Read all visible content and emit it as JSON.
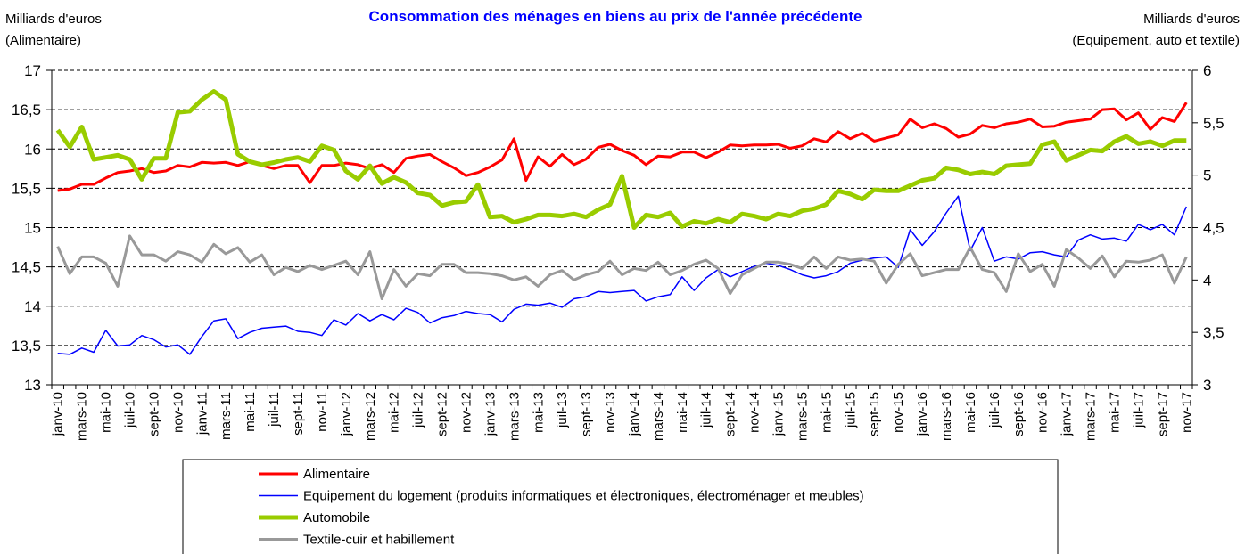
{
  "chart_data": {
    "type": "line",
    "title": "Consommation des ménages en biens au prix de l'année précédente",
    "y_label": [
      "Milliards d'euros",
      "(Alimentaire)"
    ],
    "y2_label": [
      "Milliards d'euros",
      "(Equipement, auto et textile)"
    ],
    "ylim": [
      13,
      17
    ],
    "yticks": [
      13,
      {
        "value": 13.5,
        "label": "13,5"
      },
      14,
      {
        "value": 14.5,
        "label": "14,5"
      },
      15,
      {
        "value": 15.5,
        "label": "15,5"
      },
      16,
      {
        "value": 16.5,
        "label": "16,5"
      },
      17
    ],
    "y2lim": [
      3,
      6
    ],
    "y2ticks": [
      3,
      {
        "value": 3.5,
        "label": "3,5"
      },
      4,
      {
        "value": 4.5,
        "label": "4,5"
      },
      5,
      {
        "value": 5.5,
        "label": "5,5"
      },
      6
    ],
    "grid": true,
    "categories": [
      "janv-10",
      null,
      "mars-10",
      null,
      "mai-10",
      null,
      "juil-10",
      null,
      "sept-10",
      null,
      "nov-10",
      null,
      "janv-11",
      null,
      "mars-11",
      null,
      "mai-11",
      null,
      "juil-11",
      null,
      "sept-11",
      null,
      "nov-11",
      null,
      "janv-12",
      null,
      "mars-12",
      null,
      "mai-12",
      null,
      "juil-12",
      null,
      "sept-12",
      null,
      "nov-12",
      null,
      "janv-13",
      null,
      "mars-13",
      null,
      "mai-13",
      null,
      "juil-13",
      null,
      "sept-13",
      null,
      "nov-13",
      null,
      "janv-14",
      null,
      "mars-14",
      null,
      "mai-14",
      null,
      "juil-14",
      null,
      "sept-14",
      null,
      "nov-14",
      null,
      "janv-15",
      null,
      "mars-15",
      null,
      "mai-15",
      null,
      "juil-15",
      null,
      "sept-15",
      null,
      "nov-15",
      null,
      "janv-16",
      null,
      "mars-16",
      null,
      "mai-16",
      null,
      "juil-16",
      null,
      "sept-16",
      null,
      "nov-16",
      null,
      "janv-17",
      null,
      "mars-17",
      null,
      "mai-17",
      null,
      "juil-17",
      null,
      "sept-17",
      null,
      "nov-17"
    ],
    "series": [
      {
        "name": "Alimentaire",
        "color": "#ff0000",
        "axis": "y",
        "values": [
          15.47,
          15.49,
          15.55,
          15.55,
          15.63,
          15.7,
          15.72,
          15.75,
          15.7,
          15.72,
          15.79,
          15.77,
          15.83,
          15.82,
          15.83,
          15.79,
          15.84,
          15.79,
          15.75,
          15.79,
          15.79,
          15.57,
          15.79,
          15.79,
          15.82,
          15.8,
          15.75,
          15.8,
          15.7,
          15.88,
          15.91,
          15.93,
          15.84,
          15.76,
          15.66,
          15.7,
          15.77,
          15.86,
          16.13,
          15.6,
          15.9,
          15.78,
          15.93,
          15.8,
          15.87,
          16.02,
          16.06,
          15.98,
          15.92,
          15.8,
          15.91,
          15.9,
          15.96,
          15.96,
          15.89,
          15.96,
          16.05,
          16.04,
          16.05,
          16.05,
          16.06,
          16.01,
          16.04,
          16.13,
          16.09,
          16.22,
          16.13,
          16.2,
          16.1,
          16.14,
          16.18,
          16.38,
          16.27,
          16.32,
          16.26,
          16.15,
          16.19,
          16.3,
          16.27,
          16.32,
          16.34,
          16.38,
          16.28,
          16.29,
          16.34,
          16.36,
          16.38,
          16.5,
          16.51,
          16.37,
          16.46,
          16.25,
          16.4,
          16.35,
          16.59
        ]
      },
      {
        "name": "Equipement du logement (produits informatiques et électroniques, électroménager et meubles)",
        "color": "#0000ff",
        "axis": "y2",
        "values": [
          3.3,
          3.29,
          3.35,
          3.31,
          3.52,
          3.37,
          3.38,
          3.47,
          3.43,
          3.36,
          3.38,
          3.29,
          3.46,
          3.61,
          3.63,
          3.44,
          3.5,
          3.54,
          3.55,
          3.56,
          3.51,
          3.5,
          3.47,
          3.62,
          3.57,
          3.68,
          3.61,
          3.67,
          3.62,
          3.73,
          3.69,
          3.59,
          3.64,
          3.66,
          3.7,
          3.68,
          3.67,
          3.6,
          3.72,
          3.77,
          3.76,
          3.78,
          3.74,
          3.82,
          3.84,
          3.89,
          3.88,
          3.89,
          3.9,
          3.8,
          3.84,
          3.86,
          4.03,
          3.9,
          4.02,
          4.1,
          4.03,
          4.08,
          4.13,
          4.16,
          4.14,
          4.1,
          4.05,
          4.02,
          4.04,
          4.08,
          4.16,
          4.19,
          4.21,
          4.22,
          4.12,
          4.48,
          4.33,
          4.46,
          4.64,
          4.8,
          4.28,
          4.5,
          4.18,
          4.22,
          4.2,
          4.26,
          4.27,
          4.24,
          4.22,
          4.38,
          4.43,
          4.39,
          4.4,
          4.37,
          4.53,
          4.48,
          4.53,
          4.43,
          4.7
        ]
      },
      {
        "name": "Automobile",
        "color": "#99cc00",
        "axis": "y2",
        "values": [
          5.43,
          5.27,
          5.46,
          5.15,
          5.17,
          5.19,
          5.15,
          4.96,
          5.16,
          5.16,
          5.6,
          5.61,
          5.72,
          5.8,
          5.72,
          5.2,
          5.13,
          5.1,
          5.12,
          5.15,
          5.17,
          5.13,
          5.28,
          5.24,
          5.04,
          4.96,
          5.09,
          4.92,
          4.98,
          4.93,
          4.83,
          4.81,
          4.71,
          4.74,
          4.75,
          4.91,
          4.6,
          4.61,
          4.55,
          4.58,
          4.62,
          4.62,
          4.61,
          4.63,
          4.6,
          4.67,
          4.72,
          4.99,
          4.5,
          4.62,
          4.6,
          4.64,
          4.51,
          4.56,
          4.54,
          4.58,
          4.55,
          4.63,
          4.61,
          4.58,
          4.63,
          4.61,
          4.66,
          4.68,
          4.72,
          4.85,
          4.82,
          4.77,
          4.86,
          4.85,
          4.85,
          4.9,
          4.95,
          4.97,
          5.07,
          5.05,
          5.01,
          5.03,
          5.01,
          5.09,
          5.1,
          5.11,
          5.29,
          5.32,
          5.14,
          5.19,
          5.24,
          5.23,
          5.32,
          5.37,
          5.3,
          5.32,
          5.28,
          5.33,
          5.33
        ]
      },
      {
        "name": "Textile-cuir et habillement",
        "color": "#999999",
        "axis": "y2",
        "values": [
          4.32,
          4.06,
          4.22,
          4.22,
          4.16,
          3.94,
          4.42,
          4.24,
          4.24,
          4.18,
          4.27,
          4.24,
          4.17,
          4.34,
          4.25,
          4.31,
          4.17,
          4.24,
          4.05,
          4.12,
          4.08,
          4.14,
          4.1,
          4.14,
          4.18,
          4.05,
          4.27,
          3.82,
          4.1,
          3.94,
          4.06,
          4.04,
          4.15,
          4.15,
          4.07,
          4.07,
          4.06,
          4.04,
          4.0,
          4.03,
          3.94,
          4.05,
          4.09,
          4.0,
          4.05,
          4.08,
          4.18,
          4.05,
          4.11,
          4.09,
          4.17,
          4.05,
          4.09,
          4.15,
          4.19,
          4.11,
          3.87,
          4.05,
          4.11,
          4.17,
          4.17,
          4.15,
          4.11,
          4.22,
          4.11,
          4.22,
          4.19,
          4.2,
          4.18,
          3.97,
          4.15,
          4.25,
          4.04,
          4.07,
          4.1,
          4.1,
          4.31,
          4.1,
          4.07,
          3.89,
          4.25,
          4.08,
          4.15,
          3.94,
          4.29,
          4.21,
          4.11,
          4.23,
          4.03,
          4.18,
          4.17,
          4.19,
          4.24,
          3.97,
          4.22
        ]
      }
    ]
  }
}
